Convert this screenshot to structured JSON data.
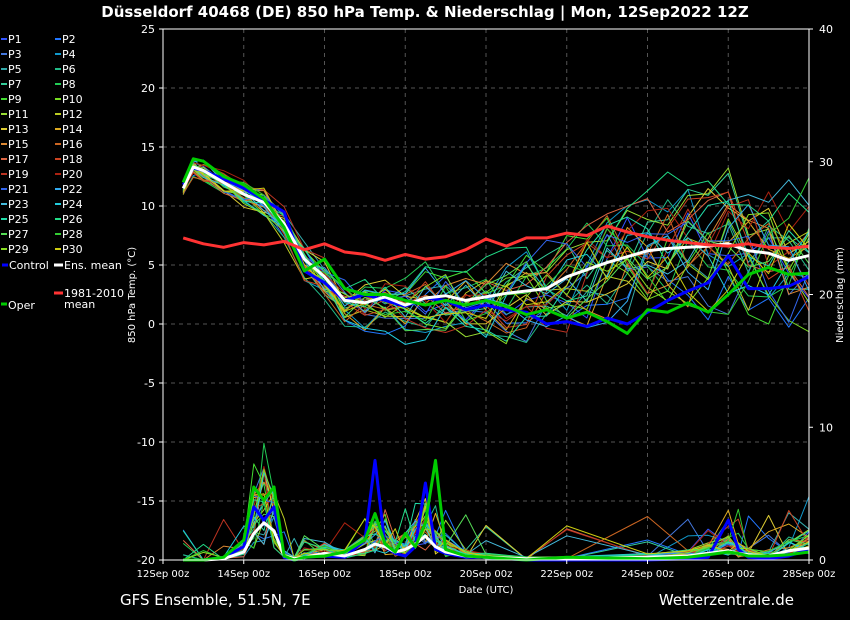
{
  "title": "Düsseldorf 40468 (DE)  850 hPa Temp. & Niederschlag | Mon, 12Sep2022 12Z",
  "footer_left": "GFS Ensemble, 51.5N, 7E",
  "footer_right": "Wetterzentrale.de",
  "colors": {
    "background": "#000000",
    "grid": "#555555",
    "control": "#0000ff",
    "ens_mean": "#ffffff",
    "oper": "#00cc00",
    "climate_mean": "#ff3333"
  },
  "legend": {
    "members": [
      {
        "label": "P1",
        "color": "#3355ff"
      },
      {
        "label": "P2",
        "color": "#2277ff"
      },
      {
        "label": "P3",
        "color": "#4477dd"
      },
      {
        "label": "P4",
        "color": "#1199cc"
      },
      {
        "label": "P5",
        "color": "#33aaaa"
      },
      {
        "label": "P6",
        "color": "#22bb88"
      },
      {
        "label": "P7",
        "color": "#33cc99"
      },
      {
        "label": "P8",
        "color": "#22cc55"
      },
      {
        "label": "P9",
        "color": "#44dd33"
      },
      {
        "label": "P10",
        "color": "#77dd22"
      },
      {
        "label": "P11",
        "color": "#99dd33"
      },
      {
        "label": "P12",
        "color": "#bbcc22"
      },
      {
        "label": "P13",
        "color": "#ddcc33"
      },
      {
        "label": "P14",
        "color": "#ddaa22"
      },
      {
        "label": "P15",
        "color": "#dd8833"
      },
      {
        "label": "P16",
        "color": "#cc6622"
      },
      {
        "label": "P17",
        "color": "#dd6644"
      },
      {
        "label": "P18",
        "color": "#cc4422"
      },
      {
        "label": "P19",
        "color": "#bb3322"
      },
      {
        "label": "P20",
        "color": "#aa2211"
      },
      {
        "label": "P21",
        "color": "#3366ee"
      },
      {
        "label": "P22",
        "color": "#33aaee"
      },
      {
        "label": "P23",
        "color": "#44bbdd"
      },
      {
        "label": "P24",
        "color": "#22ccdd"
      },
      {
        "label": "P25",
        "color": "#22ddaa"
      },
      {
        "label": "P26",
        "color": "#22dd88"
      },
      {
        "label": "P27",
        "color": "#55dd55"
      },
      {
        "label": "P28",
        "color": "#33cc33"
      },
      {
        "label": "P29",
        "color": "#88dd22"
      },
      {
        "label": "P30",
        "color": "#cccc11"
      }
    ],
    "control_label": "Control",
    "ens_mean_label": "Ens. mean",
    "climate_label_1": "1981-2010",
    "climate_label_2": "mean",
    "oper_label": "Oper"
  },
  "chart_data": {
    "type": "line",
    "xlabel": "Date (UTC)",
    "ylabel_left": "850 hPa Temp. (°C)",
    "ylabel_right": "Niederschlag (mm)",
    "x_range": [
      "12Sep 00z",
      "28Sep 00z"
    ],
    "x_ticks": [
      "12Sep 00z",
      "14Sep 00z",
      "16Sep 00z",
      "18Sep 00z",
      "20Sep 00z",
      "22Sep 00z",
      "24Sep 00z",
      "26Sep 00z",
      "28Sep 00z"
    ],
    "x_tick_days": [
      12,
      14,
      16,
      18,
      20,
      22,
      24,
      26,
      28
    ],
    "ylim_left": [
      -20,
      25
    ],
    "y_ticks_left": [
      -20,
      -15,
      -10,
      -5,
      0,
      5,
      10,
      15,
      20,
      25
    ],
    "ylim_right": [
      0,
      40
    ],
    "y_ticks_right": [
      0,
      10,
      20,
      30,
      40
    ],
    "grid": true,
    "temperature_series": [
      {
        "name": "Control",
        "x": [
          12.5,
          12.75,
          13.0,
          13.5,
          14.0,
          14.5,
          15.0,
          15.5,
          16.0,
          16.5,
          17.0,
          17.5,
          18.0,
          18.5,
          19.0,
          19.5,
          20.0,
          20.5,
          21.0,
          21.5,
          22.0,
          22.5,
          23.0,
          23.5,
          24.0,
          24.5,
          25.0,
          25.5,
          26.0,
          26.5,
          27.0,
          27.5,
          28.0
        ],
        "y": [
          11.8,
          13.2,
          13.0,
          12.3,
          11.5,
          10.5,
          9.5,
          4.5,
          3.5,
          2.0,
          2.5,
          2.0,
          1.5,
          2.2,
          2.0,
          1.2,
          1.6,
          1.2,
          1.0,
          0.0,
          0.2,
          -0.2,
          0.5,
          0.0,
          1.0,
          2.0,
          2.8,
          3.5,
          5.8,
          3.0,
          3.0,
          3.2,
          4.0
        ]
      },
      {
        "name": "Ens. mean",
        "x": [
          12.5,
          12.75,
          13.0,
          13.5,
          14.0,
          14.5,
          15.0,
          15.5,
          16.0,
          16.5,
          17.0,
          17.5,
          18.0,
          18.5,
          19.0,
          19.5,
          20.0,
          20.5,
          21.0,
          21.5,
          22.0,
          22.5,
          23.0,
          23.5,
          24.0,
          24.5,
          25.0,
          25.5,
          26.0,
          26.5,
          27.0,
          27.5,
          28.0
        ],
        "y": [
          11.5,
          13.3,
          13.0,
          12.0,
          11.0,
          10.3,
          8.5,
          5.5,
          4.0,
          2.0,
          1.8,
          2.3,
          1.6,
          2.2,
          2.4,
          2.0,
          2.3,
          2.6,
          2.8,
          3.0,
          4.0,
          4.6,
          5.2,
          5.7,
          6.2,
          6.4,
          6.5,
          6.6,
          6.8,
          6.2,
          6.0,
          5.4,
          5.8
        ]
      },
      {
        "name": "Oper",
        "x": [
          12.5,
          12.75,
          13.0,
          13.5,
          14.0,
          14.5,
          15.0,
          15.5,
          16.0,
          16.5,
          17.0,
          17.5,
          18.0,
          18.5,
          19.0,
          19.5,
          20.0,
          20.5,
          21.0,
          21.5,
          22.0,
          22.5,
          23.0,
          23.5,
          24.0,
          24.5,
          25.0,
          25.5,
          26.0,
          26.5,
          27.0,
          27.5,
          28.0
        ],
        "y": [
          12.0,
          14.0,
          13.8,
          12.5,
          11.8,
          10.6,
          8.2,
          4.5,
          5.5,
          3.0,
          2.5,
          2.5,
          2.0,
          1.6,
          2.0,
          1.6,
          2.0,
          1.5,
          0.8,
          1.2,
          0.5,
          1.0,
          0.2,
          -0.8,
          1.2,
          1.0,
          1.8,
          1.0,
          2.5,
          4.2,
          4.8,
          4.2,
          4.3
        ]
      },
      {
        "name": "1981-2010 mean",
        "x": [
          12.5,
          13.0,
          13.5,
          14.0,
          14.5,
          15.0,
          15.5,
          16.0,
          16.5,
          17.0,
          17.5,
          18.0,
          18.5,
          19.0,
          19.5,
          20.0,
          20.5,
          21.0,
          21.5,
          22.0,
          22.5,
          23.0,
          23.5,
          24.0,
          24.5,
          25.0,
          25.5,
          26.0,
          26.5,
          27.0,
          27.5,
          28.0
        ],
        "y": [
          7.3,
          6.8,
          6.5,
          6.9,
          6.7,
          7.0,
          6.3,
          6.8,
          6.1,
          5.9,
          5.4,
          5.9,
          5.5,
          5.7,
          6.3,
          7.2,
          6.6,
          7.3,
          7.3,
          7.7,
          7.5,
          8.3,
          7.8,
          7.4,
          7.1,
          6.9,
          6.7,
          6.6,
          6.8,
          6.5,
          6.4,
          6.6
        ]
      }
    ],
    "precipitation_series": [
      {
        "name": "Control",
        "x": [
          12.5,
          13.0,
          13.5,
          14.0,
          14.25,
          14.5,
          14.75,
          15.0,
          15.25,
          15.5,
          16.0,
          16.5,
          17.0,
          17.25,
          17.5,
          17.75,
          18.0,
          18.25,
          18.5,
          18.75,
          19.0,
          19.5,
          20.0,
          21.0,
          22.0,
          24.0,
          25.0,
          25.5,
          26.0,
          26.25,
          26.5,
          27.0,
          27.5,
          28.0
        ],
        "y": [
          0,
          0,
          0.2,
          1.0,
          4.0,
          3.0,
          4.0,
          0.2,
          0,
          0.2,
          0.3,
          0.2,
          1.5,
          7.5,
          1.0,
          0.5,
          0.3,
          1.0,
          5.8,
          0.8,
          0.5,
          0.2,
          0.2,
          0,
          0,
          0,
          0.1,
          0.2,
          3.0,
          0.8,
          0.2,
          0.1,
          0.3,
          0.8
        ]
      },
      {
        "name": "Ens. mean",
        "x": [
          12.5,
          13.0,
          13.5,
          14.0,
          14.25,
          14.5,
          14.75,
          15.0,
          15.25,
          15.5,
          16.0,
          16.5,
          17.0,
          17.25,
          17.5,
          17.75,
          18.0,
          18.25,
          18.5,
          18.75,
          19.0,
          19.5,
          20.0,
          21.0,
          22.0,
          24.0,
          25.0,
          25.5,
          26.0,
          26.25,
          26.5,
          27.0,
          27.5,
          28.0
        ],
        "y": [
          0,
          0,
          0.1,
          0.6,
          2.0,
          2.8,
          2.2,
          0.3,
          0.1,
          0.2,
          0.5,
          0.3,
          0.8,
          1.2,
          1.0,
          0.6,
          0.8,
          1.2,
          1.8,
          1.0,
          0.6,
          0.3,
          0.2,
          0.1,
          0.1,
          0.2,
          0.3,
          0.5,
          0.7,
          0.5,
          0.4,
          0.3,
          0.7,
          0.9
        ]
      },
      {
        "name": "Oper",
        "x": [
          12.5,
          13.0,
          13.5,
          14.0,
          14.25,
          14.5,
          14.75,
          15.0,
          15.25,
          15.5,
          16.0,
          16.5,
          17.0,
          17.25,
          17.5,
          17.75,
          18.0,
          18.25,
          18.5,
          18.75,
          19.0,
          19.5,
          20.0,
          21.0,
          22.0,
          24.0,
          25.0,
          25.5,
          26.0,
          26.25,
          26.5,
          27.0,
          27.5,
          28.0
        ],
        "y": [
          0,
          0,
          0.2,
          1.5,
          5.5,
          4.5,
          5.5,
          0.3,
          0,
          0.2,
          0.3,
          0.6,
          1.5,
          3.5,
          1.2,
          0.6,
          2.0,
          1.0,
          2.8,
          7.5,
          0.8,
          0.3,
          0.2,
          0,
          0.2,
          0.1,
          0.2,
          0.4,
          0.6,
          0.5,
          0.3,
          0.3,
          0.4,
          0.6
        ]
      }
    ]
  }
}
